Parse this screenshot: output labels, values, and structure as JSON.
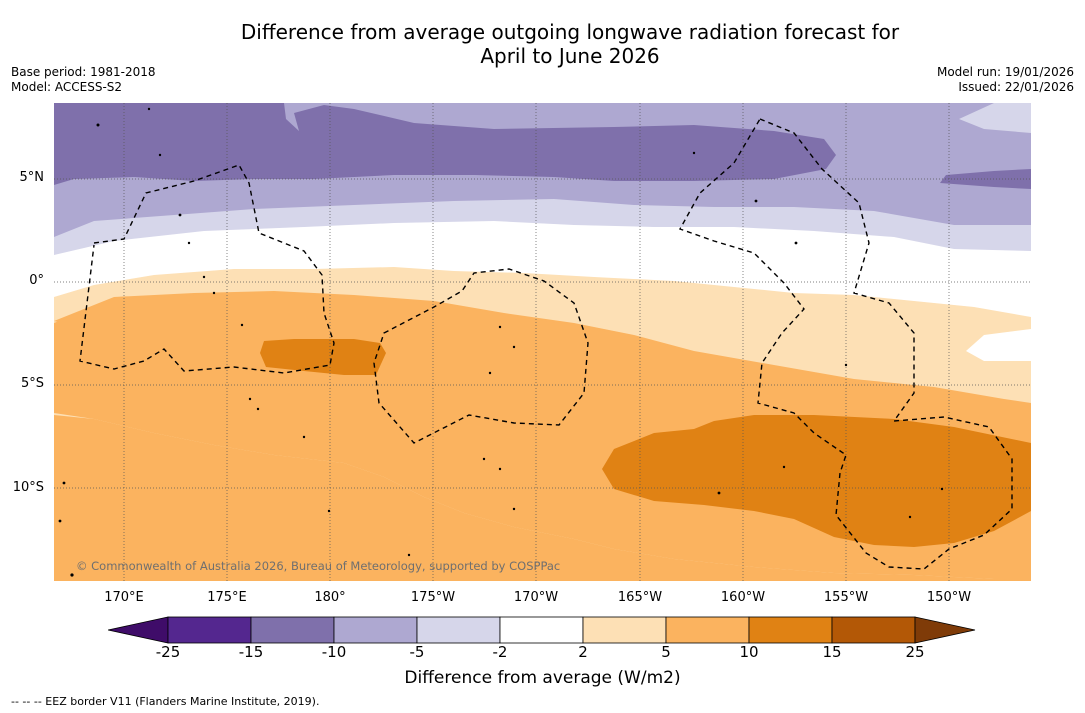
{
  "title": {
    "line1": "Difference from average outgoing longwave radiation forecast for",
    "line2": "April to June 2026"
  },
  "meta_left": {
    "base_period": "Base period: 1981-2018",
    "model": "Model: ACCESS-S2"
  },
  "meta_right": {
    "model_run": "Model run: 19/01/2026",
    "issued": "Issued: 22/01/2026"
  },
  "map": {
    "lat_labels": [
      "5°N",
      "0°",
      "5°S",
      "10°S"
    ],
    "lon_labels": [
      "170°E",
      "175°E",
      "180°",
      "175°W",
      "170°W",
      "165°W",
      "160°W",
      "155°W",
      "150°W"
    ],
    "copyright": "© Commonwealth of Australia 2026, Bureau of Meteorology, supported by COSPPac",
    "eez_line_color": "#000000"
  },
  "colorbar": {
    "ticks": [
      "-25",
      "-15",
      "-10",
      "-5",
      "-2",
      "2",
      "5",
      "10",
      "15",
      "25"
    ],
    "colors": [
      "#3f0c69",
      "#54278f",
      "#7f70ab",
      "#aea8d1",
      "#d6d6ea",
      "#ffffff",
      "#fde0b5",
      "#fbb35f",
      "#e08214",
      "#b35806",
      "#7f3b08"
    ],
    "label": "Difference from average (W/m2)"
  },
  "footnote": "--  --  -- EEZ border V11 (Flanders Marine Institute, 2019)."
}
